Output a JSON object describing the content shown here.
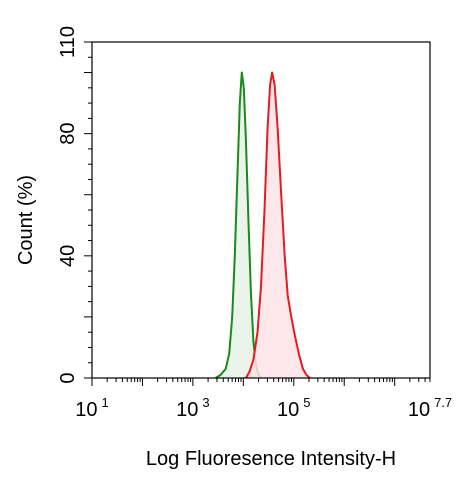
{
  "chart_data": {
    "type": "area",
    "xlabel": "Log Fluoresence Intensity-H",
    "ylabel": "Count  (%)",
    "x_scale": "log10",
    "xlim": [
      1,
      7.7
    ],
    "ylim": [
      0,
      110
    ],
    "x_ticks": [
      {
        "value": 1,
        "base": "10",
        "exp": "1"
      },
      {
        "value": 3,
        "base": "10",
        "exp": "3"
      },
      {
        "value": 5,
        "base": "10",
        "exp": "5"
      },
      {
        "value": 7.7,
        "base": "10",
        "exp": "7.7"
      }
    ],
    "y_ticks": [
      {
        "value": 0,
        "label": "0"
      },
      {
        "value": 40,
        "label": "40"
      },
      {
        "value": 80,
        "label": "80"
      },
      {
        "value": 110,
        "label": "110"
      }
    ],
    "grid": false,
    "legend": "none",
    "series": [
      {
        "color": "#1a8a1a",
        "fill": "#e6f2e6",
        "points": [
          [
            3.45,
            0
          ],
          [
            3.55,
            1
          ],
          [
            3.65,
            3
          ],
          [
            3.72,
            8
          ],
          [
            3.78,
            20
          ],
          [
            3.83,
            40
          ],
          [
            3.88,
            65
          ],
          [
            3.93,
            90
          ],
          [
            3.97,
            100
          ],
          [
            4.01,
            95
          ],
          [
            4.05,
            78
          ],
          [
            4.1,
            52
          ],
          [
            4.15,
            28
          ],
          [
            4.2,
            12
          ],
          [
            4.25,
            4
          ],
          [
            4.3,
            1
          ],
          [
            4.35,
            0
          ]
        ]
      },
      {
        "color": "#e31b23",
        "fill": "#fde3e6",
        "points": [
          [
            4.05,
            0
          ],
          [
            4.12,
            2
          ],
          [
            4.2,
            6
          ],
          [
            4.28,
            15
          ],
          [
            4.35,
            30
          ],
          [
            4.42,
            55
          ],
          [
            4.48,
            82
          ],
          [
            4.53,
            96
          ],
          [
            4.57,
            100
          ],
          [
            4.62,
            96
          ],
          [
            4.68,
            82
          ],
          [
            4.75,
            60
          ],
          [
            4.82,
            40
          ],
          [
            4.88,
            27
          ],
          [
            4.95,
            20
          ],
          [
            5.02,
            14
          ],
          [
            5.1,
            8
          ],
          [
            5.18,
            3
          ],
          [
            5.25,
            1
          ],
          [
            5.32,
            0
          ]
        ]
      }
    ]
  }
}
